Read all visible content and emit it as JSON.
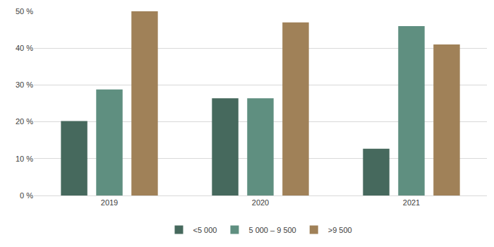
{
  "chart_data": {
    "type": "bar",
    "categories": [
      "2019",
      "2020",
      "2021"
    ],
    "series": [
      {
        "name": "<5 000",
        "color": "#46695d",
        "values": [
          20.2,
          26.4,
          12.7
        ]
      },
      {
        "name": "5 000 – 9 500",
        "color": "#5f8f80",
        "values": [
          28.8,
          26.4,
          46
        ]
      },
      {
        "name": ">9 500",
        "color": "#a08158",
        "values": [
          50,
          47,
          41
        ]
      }
    ],
    "ylim": [
      0,
      50
    ],
    "yticks": [
      {
        "value": 0,
        "label": "0 %"
      },
      {
        "value": 10,
        "label": "10 %"
      },
      {
        "value": 20,
        "label": "20 %"
      },
      {
        "value": 30,
        "label": "30 %"
      },
      {
        "value": 40,
        "label": "40 %"
      },
      {
        "value": 50,
        "label": "50 %"
      }
    ],
    "grid": true,
    "legend": "bottom"
  }
}
